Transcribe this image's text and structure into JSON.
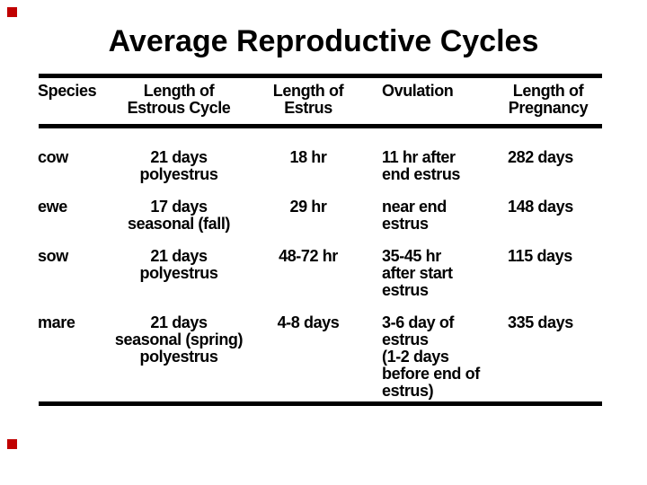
{
  "slide": {
    "title": "Average Reproductive Cycles",
    "background_color": "#ffffff",
    "text_color": "#000000",
    "rule_color": "#000000",
    "corner_marker_color": "#c00000"
  },
  "table": {
    "columns": [
      {
        "id": "species",
        "header_lines": [
          "Species"
        ]
      },
      {
        "id": "estrous_cycle",
        "header_lines": [
          "Length of",
          "Estrous Cycle"
        ]
      },
      {
        "id": "estrus",
        "header_lines": [
          "Length of",
          "Estrus"
        ]
      },
      {
        "id": "ovulation",
        "header_lines": [
          "Ovulation"
        ]
      },
      {
        "id": "pregnancy",
        "header_lines": [
          "Length of",
          "Pregnancy"
        ]
      }
    ],
    "rows": [
      {
        "species": "cow",
        "estrous_cycle": [
          "21 days",
          "polyestrus"
        ],
        "estrus": [
          "18 hr"
        ],
        "ovulation": [
          "11 hr after",
          "end estrus"
        ],
        "pregnancy": [
          "282 days"
        ]
      },
      {
        "species": "ewe",
        "estrous_cycle": [
          "17 days",
          "seasonal (fall)"
        ],
        "estrus": [
          "29 hr"
        ],
        "ovulation": [
          "near end",
          "estrus"
        ],
        "pregnancy": [
          "148 days"
        ]
      },
      {
        "species": "sow",
        "estrous_cycle": [
          "21 days",
          "polyestrus"
        ],
        "estrus": [
          "48-72 hr"
        ],
        "ovulation": [
          "35-45 hr",
          "after start",
          "estrus"
        ],
        "pregnancy": [
          "115 days"
        ]
      },
      {
        "species": "mare",
        "estrous_cycle": [
          "21 days",
          "seasonal (spring)",
          "polyestrus"
        ],
        "estrus": [
          "4-8 days"
        ],
        "ovulation": [
          "3-6 day of",
          "estrus",
          "(1-2 days",
          "before end of",
          "estrus)"
        ],
        "pregnancy": [
          "335 days"
        ]
      }
    ]
  }
}
